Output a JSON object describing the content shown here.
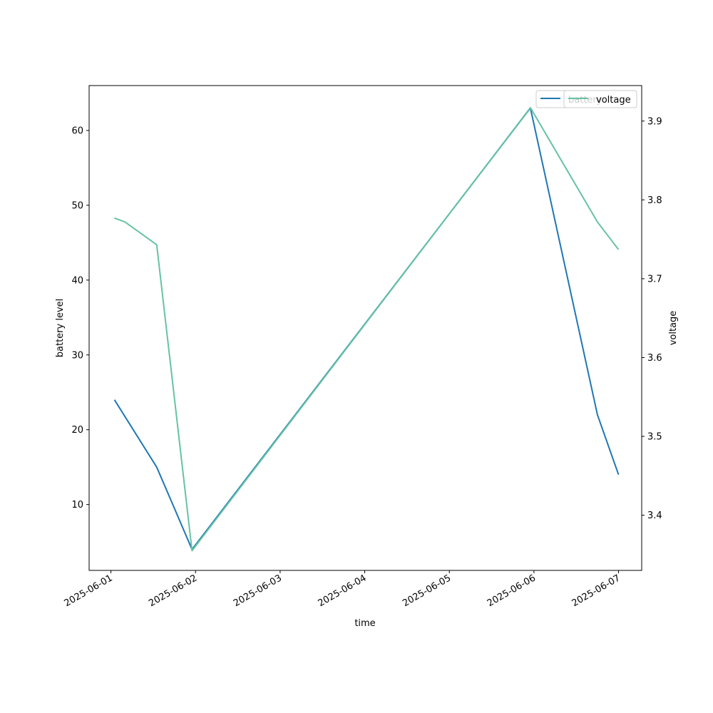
{
  "chart_data": {
    "type": "line",
    "x_type": "datetime",
    "xlabel": "time",
    "ylabel_left": "battery level",
    "ylabel_right": "voltage",
    "xlim": [
      "2025-06-00T17:49",
      "2025-06-07T06:34"
    ],
    "ylim_left": [
      1.2,
      66
    ],
    "ylim_right": [
      3.33,
      3.945
    ],
    "x_ticks": [
      "2025-06-01",
      "2025-06-02",
      "2025-06-03",
      "2025-06-04",
      "2025-06-05",
      "2025-06-06",
      "2025-06-07"
    ],
    "y_ticks_left": [
      10,
      20,
      30,
      40,
      50,
      60
    ],
    "y_ticks_right": [
      3.4,
      3.5,
      3.6,
      3.7,
      3.8,
      3.9
    ],
    "legend_location": "top-right",
    "legend_left": "battery",
    "legend_right": "voltage",
    "series": [
      {
        "name": "battery",
        "axis": "left",
        "color": "#1f77b4",
        "points": [
          {
            "x": "2025-06-01T01:00",
            "y": 24
          },
          {
            "x": "2025-06-01T13:00",
            "y": 15
          },
          {
            "x": "2025-06-01T18:00",
            "y": 9.5
          },
          {
            "x": "2025-06-01T23:00",
            "y": 4
          },
          {
            "x": "2025-06-05T23:00",
            "y": 63
          },
          {
            "x": "2025-06-06T18:00",
            "y": 22
          },
          {
            "x": "2025-06-07T00:00",
            "y": 14
          }
        ]
      },
      {
        "name": "voltage",
        "axis": "right",
        "color": "#66c2a5",
        "points": [
          {
            "x": "2025-06-01T01:00",
            "y": 3.777
          },
          {
            "x": "2025-06-01T04:00",
            "y": 3.772
          },
          {
            "x": "2025-06-01T13:00",
            "y": 3.743
          },
          {
            "x": "2025-06-01T23:00",
            "y": 3.355
          },
          {
            "x": "2025-06-05T23:00",
            "y": 3.917
          },
          {
            "x": "2025-06-06T18:00",
            "y": 3.772
          },
          {
            "x": "2025-06-07T00:00",
            "y": 3.737
          }
        ]
      }
    ]
  }
}
